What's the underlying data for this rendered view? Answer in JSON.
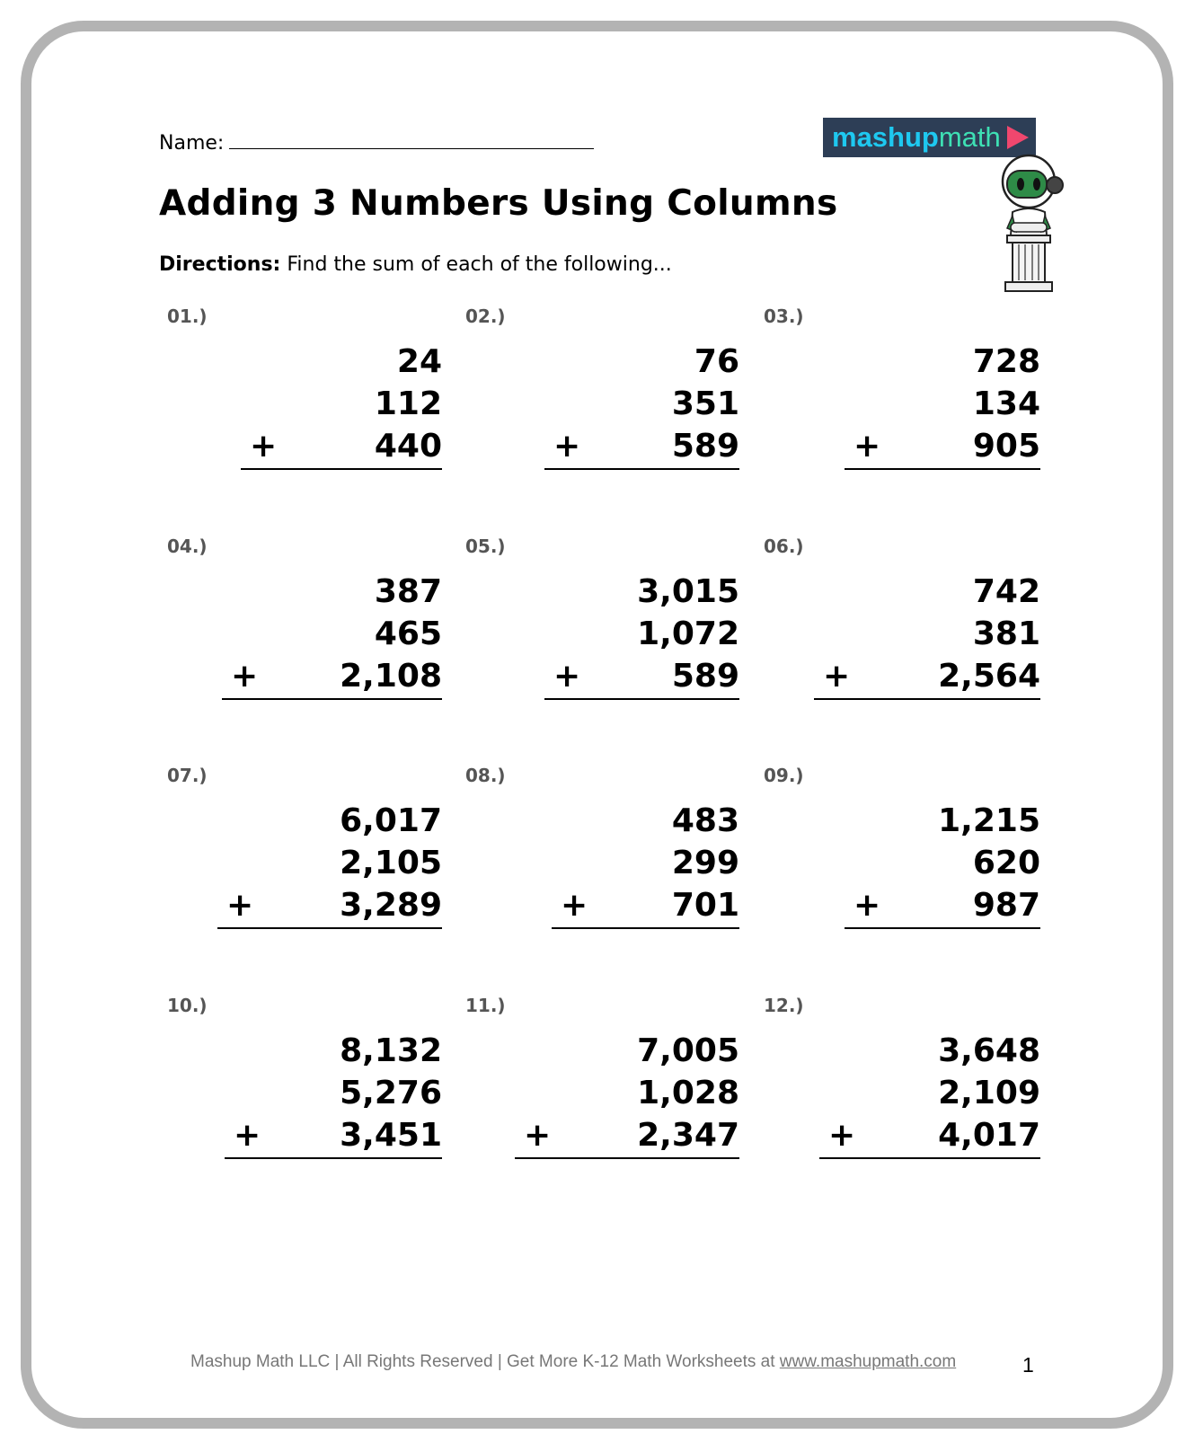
{
  "header": {
    "name_label": "Name:",
    "title": "Adding 3 Numbers Using Columns",
    "directions_label": "Directions:",
    "directions_text": " Find the sum of each of the following..."
  },
  "logo": {
    "part1": "mashup",
    "part2": "math",
    "colors": {
      "background": "#2d3e56",
      "mashup": "#1ec8f0",
      "math": "#3ee0b4",
      "play": "#f0476e"
    }
  },
  "mascot": {
    "icon": "robot-on-pillar-icon"
  },
  "problems": [
    {
      "label": "01.)",
      "a": "24",
      "b": "112",
      "c": "440",
      "operator": "+"
    },
    {
      "label": "02.)",
      "a": "76",
      "b": "351",
      "c": "589",
      "operator": "+"
    },
    {
      "label": "03.)",
      "a": "728",
      "b": "134",
      "c": "905",
      "operator": "+"
    },
    {
      "label": "04.)",
      "a": "387",
      "b": "465",
      "c": "2,108",
      "operator": "+"
    },
    {
      "label": "05.)",
      "a": "3,015",
      "b": "1,072",
      "c": "589",
      "operator": "+"
    },
    {
      "label": "06.)",
      "a": "742",
      "b": "381",
      "c": "2,564",
      "operator": "+"
    },
    {
      "label": "07.)",
      "a": "6,017",
      "b": "2,105",
      "c": "3,289",
      "operator": "+"
    },
    {
      "label": "08.)",
      "a": "483",
      "b": "299",
      "c": "701",
      "operator": "+"
    },
    {
      "label": "09.)",
      "a": "1,215",
      "b": "620",
      "c": "987",
      "operator": "+"
    },
    {
      "label": "10.)",
      "a": "8,132",
      "b": "5,276",
      "c": "3,451",
      "operator": "+"
    },
    {
      "label": "11.)",
      "a": "7,005",
      "b": "1,028",
      "c": "2,347",
      "operator": "+"
    },
    {
      "label": "12.)",
      "a": "3,648",
      "b": "2,109",
      "c": "4,017",
      "operator": "+"
    }
  ],
  "footer": {
    "text": "Mashup Math LLC | All Rights Reserved | Get More K-12 Math Worksheets at ",
    "link": "www.mashupmath.com",
    "page_number": "1"
  }
}
